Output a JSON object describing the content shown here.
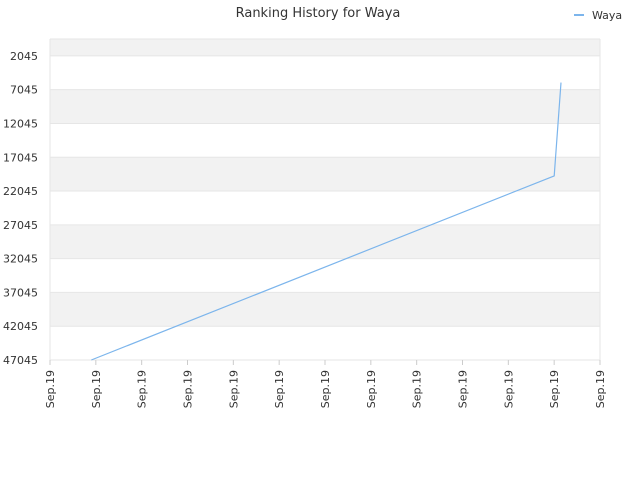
{
  "chart_data": {
    "type": "line",
    "title": "Ranking History for Waya",
    "xlabel": "",
    "ylabel": "",
    "y_inverted": true,
    "ylim": [
      47045,
      0
    ],
    "yticks": [
      2045,
      7045,
      12045,
      17045,
      22045,
      27045,
      32045,
      37045,
      42045,
      47045
    ],
    "xticks": [
      "Sep.19",
      "Sep.19",
      "Sep.19",
      "Sep.19",
      "Sep.19",
      "Sep.19",
      "Sep.19",
      "Sep.19",
      "Sep.19",
      "Sep.19",
      "Sep.19",
      "Sep.19",
      "Sep.19"
    ],
    "x_range": [
      0,
      12
    ],
    "grid": true,
    "banded_background": true,
    "legend_position": "top-right",
    "series": [
      {
        "name": "Waya",
        "color": "#7cb5ec",
        "x": [
          0.9,
          11.0,
          11.15
        ],
        "y": [
          47045,
          19800,
          6000
        ]
      }
    ]
  }
}
